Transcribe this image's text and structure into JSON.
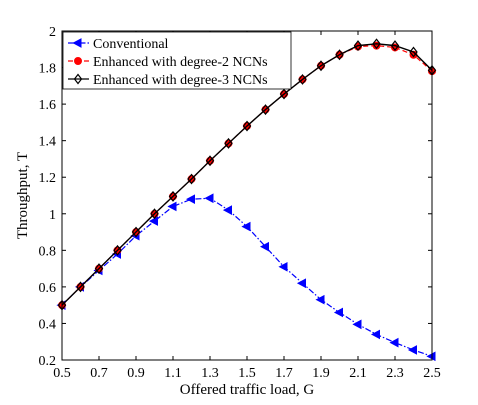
{
  "chart_data": {
    "type": "line",
    "xlabel": "Offered traffic load, G",
    "ylabel": "Throughput, T",
    "xlim": [
      0.5,
      2.5
    ],
    "ylim": [
      0.2,
      2.0
    ],
    "xticks": [
      "0.5",
      "0.7",
      "0.9",
      "1.1",
      "1.3",
      "1.5",
      "1.7",
      "1.9",
      "2.1",
      "2.3",
      "2.5"
    ],
    "yticks": [
      "0.2",
      "0.4",
      "0.6",
      "0.8",
      "1",
      "1.2",
      "1.4",
      "1.6",
      "1.8",
      "2"
    ],
    "grid": false,
    "legend_position": "top-left",
    "x": [
      0.5,
      0.6,
      0.7,
      0.8,
      0.9,
      1.0,
      1.1,
      1.2,
      1.3,
      1.4,
      1.5,
      1.6,
      1.7,
      1.8,
      1.9,
      2.0,
      2.1,
      2.2,
      2.3,
      2.4,
      2.5
    ],
    "series": [
      {
        "name": "Conventional",
        "color": "#0000ff",
        "marker": "triangle-left",
        "style": "dashdot",
        "x": [
          0.5,
          0.6,
          0.7,
          0.8,
          0.9,
          1.0,
          1.1,
          1.2,
          1.3,
          1.4,
          1.5,
          1.6,
          1.7,
          1.8,
          1.9,
          2.0,
          2.1,
          2.2,
          2.3,
          2.4,
          2.5
        ],
        "values": [
          0.5,
          0.6,
          0.69,
          0.78,
          0.88,
          0.96,
          1.04,
          1.08,
          1.085,
          1.02,
          0.93,
          0.82,
          0.71,
          0.62,
          0.53,
          0.46,
          0.395,
          0.34,
          0.295,
          0.255,
          0.22
        ]
      },
      {
        "name": "Enhanced with degree-2 NCNs",
        "color": "#ff0000",
        "marker": "circle",
        "style": "dashed",
        "x": [
          0.5,
          0.6,
          0.7,
          0.8,
          0.9,
          1.0,
          1.1,
          1.2,
          1.3,
          1.4,
          1.5,
          1.6,
          1.7,
          1.8,
          1.9,
          2.0,
          2.1,
          2.2,
          2.3,
          2.4,
          2.5
        ],
        "values": [
          0.5,
          0.6,
          0.7,
          0.8,
          0.9,
          1.0,
          1.095,
          1.19,
          1.29,
          1.385,
          1.48,
          1.57,
          1.655,
          1.735,
          1.81,
          1.87,
          1.915,
          1.92,
          1.91,
          1.87,
          1.78
        ]
      },
      {
        "name": "Enhanced with degree-3 NCNs",
        "color": "#000000",
        "marker": "diamond",
        "style": "solid",
        "x": [
          0.5,
          0.6,
          0.7,
          0.8,
          0.9,
          1.0,
          1.1,
          1.2,
          1.3,
          1.4,
          1.5,
          1.6,
          1.7,
          1.8,
          1.9,
          2.0,
          2.1,
          2.2,
          2.3,
          2.4,
          2.5
        ],
        "values": [
          0.5,
          0.6,
          0.7,
          0.8,
          0.9,
          1.0,
          1.095,
          1.19,
          1.29,
          1.385,
          1.48,
          1.57,
          1.655,
          1.735,
          1.81,
          1.87,
          1.92,
          1.93,
          1.92,
          1.885,
          1.785
        ]
      }
    ]
  }
}
